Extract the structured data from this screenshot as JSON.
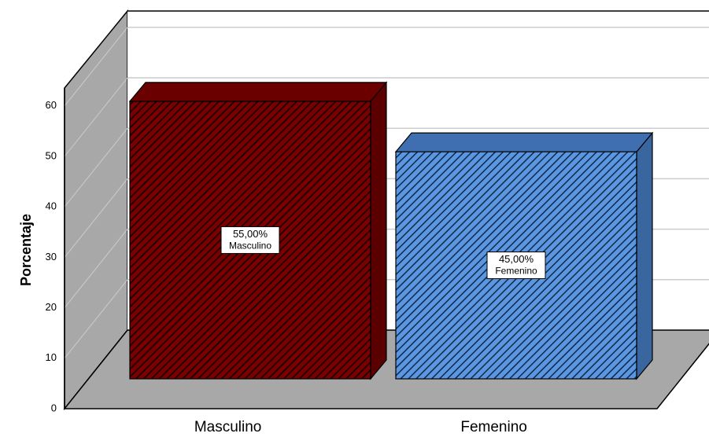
{
  "chart_data": {
    "type": "bar",
    "categories": [
      "Masculino",
      "Femenino"
    ],
    "values": [
      55,
      45
    ],
    "value_labels": [
      "55,00%",
      "45,00%"
    ],
    "colors": [
      "#7a0000",
      "#5a97e0"
    ],
    "ylabel": "Porcentaje",
    "ylim": [
      0,
      60
    ],
    "yticks": [
      0,
      10,
      20,
      30,
      40,
      50,
      60
    ],
    "grid": true
  }
}
